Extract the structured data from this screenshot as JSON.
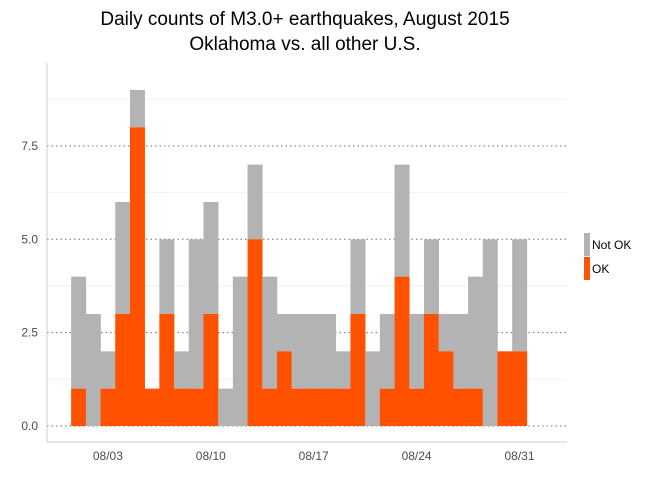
{
  "chart_data": {
    "type": "bar",
    "stacked": true,
    "title": [
      "Daily counts of M3.0+ earthquakes, August 2015",
      "Oklahoma vs. all other U.S."
    ],
    "xlabel": "",
    "ylabel": "",
    "x": [
      "2015-08-01",
      "2015-08-02",
      "2015-08-03",
      "2015-08-04",
      "2015-08-05",
      "2015-08-06",
      "2015-08-07",
      "2015-08-08",
      "2015-08-09",
      "2015-08-10",
      "2015-08-11",
      "2015-08-12",
      "2015-08-13",
      "2015-08-14",
      "2015-08-15",
      "2015-08-16",
      "2015-08-17",
      "2015-08-18",
      "2015-08-19",
      "2015-08-20",
      "2015-08-21",
      "2015-08-22",
      "2015-08-23",
      "2015-08-24",
      "2015-08-25",
      "2015-08-26",
      "2015-08-27",
      "2015-08-28",
      "2015-08-29",
      "2015-08-30",
      "2015-08-31"
    ],
    "series": [
      {
        "name": "OK",
        "color": "#ff5100",
        "values": [
          1,
          0,
          1,
          3,
          8,
          1,
          3,
          1,
          1,
          3,
          0,
          0,
          5,
          1,
          2,
          1,
          1,
          1,
          1,
          3,
          0,
          1,
          4,
          1,
          3,
          2,
          1,
          1,
          0,
          2,
          2
        ]
      },
      {
        "name": "Not OK",
        "color": "#b3b3b3",
        "values": [
          3,
          3,
          1,
          3,
          1,
          0,
          2,
          1,
          4,
          3,
          1,
          4,
          2,
          3,
          1,
          2,
          2,
          2,
          1,
          2,
          2,
          2,
          3,
          2,
          2,
          1,
          2,
          3,
          5,
          0,
          3
        ]
      }
    ],
    "ylim": [
      0,
      9.4
    ],
    "yticks": [
      0,
      2.5,
      5,
      7.5
    ],
    "ytick_labels": [
      "0.0",
      "2.5",
      "5.0",
      "7.5"
    ],
    "xticks": [
      "2015-08-03",
      "2015-08-10",
      "2015-08-17",
      "2015-08-24",
      "2015-08-31"
    ],
    "xtick_labels": [
      "08/03",
      "08/10",
      "08/17",
      "08/24",
      "08/31"
    ],
    "grid": true,
    "legend": {
      "position": "right",
      "entries": [
        "Not OK",
        "OK"
      ]
    }
  }
}
